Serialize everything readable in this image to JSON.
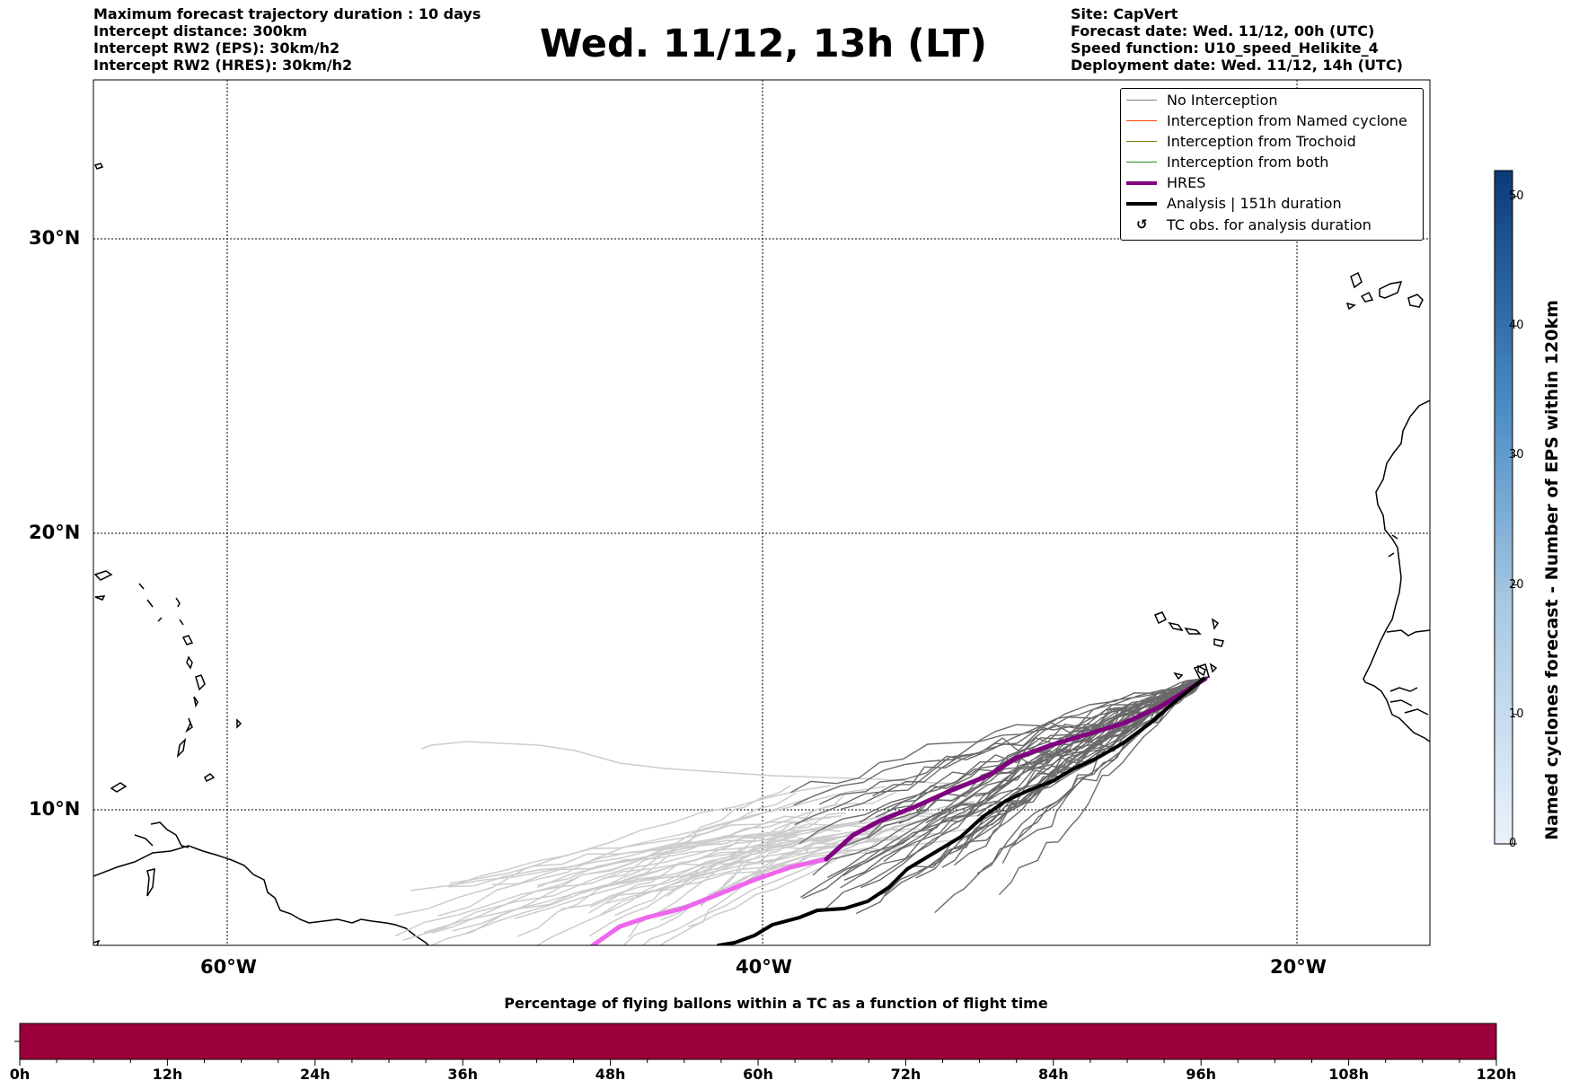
{
  "header": {
    "left_lines": [
      "Maximum forecast trajectory duration : 10 days",
      "Intercept distance: 300km",
      "Intercept RW2 (EPS):  30km/h2",
      "Intercept RW2 (HRES): 30km/h2"
    ],
    "title": "Wed. 11/12, 13h (LT)",
    "right_lines": [
      "Site: CapVert",
      "Forecast date: Wed. 11/12, 00h (UTC)",
      "Speed function: U10_speed_Helikite_4",
      "Deployment date: Wed. 11/12, 14h (UTC)"
    ]
  },
  "map": {
    "lon_ticks": [
      "60°W",
      "40°W",
      "20°W"
    ],
    "lat_ticks": [
      "30°N",
      "20°N",
      "10°N"
    ],
    "colors": {
      "no_interception": "#808080",
      "named_cyclone": "#ff4500",
      "trochoid": "#808000",
      "both": "#228b22",
      "hres": "#800080",
      "hres_early": "#ee66ee",
      "analysis": "#000000",
      "eps_far": "#cccccc",
      "eps_near": "#6a6a6a"
    }
  },
  "legend": {
    "items": [
      {
        "label": "No Interception",
        "color": "#808080"
      },
      {
        "label": "Interception from Named cyclone",
        "color": "#ff4500"
      },
      {
        "label": "Interception from Trochoid",
        "color": "#808000"
      },
      {
        "label": "Interception from both",
        "color": "#228b22"
      },
      {
        "label": "HRES",
        "color": "#800080"
      },
      {
        "label": "Analysis | 151h duration",
        "color": "#000000"
      }
    ],
    "symbol_item": {
      "label": "TC obs. for analysis duration",
      "symbol": "↺"
    }
  },
  "colorbar": {
    "label": "Named cyclones forecast - Number of EPS within 120km",
    "ticks": [
      "0",
      "10",
      "20",
      "30",
      "40",
      "50"
    ],
    "min": 0,
    "max": 52,
    "color_low": "#e8f1fb",
    "color_high": "#0b3a7a"
  },
  "bottom_bar": {
    "title": "Percentage of flying ballons within a TC as a function of flight time",
    "color": "#9b003a",
    "ticks": [
      "0h",
      "12h",
      "24h",
      "36h",
      "48h",
      "60h",
      "72h",
      "84h",
      "96h",
      "108h",
      "120h"
    ]
  }
}
